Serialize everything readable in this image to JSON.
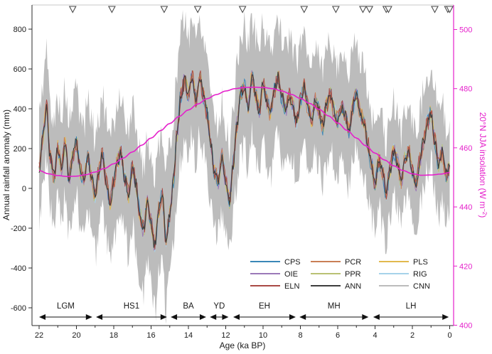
{
  "figure": {
    "background": "#ffffff"
  },
  "chart_data": {
    "type": "line",
    "title": "",
    "x_axis": {
      "label": "Age (ka BP)",
      "reversed": true,
      "major_ticks": [
        22,
        20,
        18,
        16,
        14,
        12,
        10,
        8,
        6,
        4,
        2,
        0
      ],
      "minor_ticks": [
        21,
        19,
        17,
        15,
        13,
        11,
        9,
        7,
        5,
        3,
        1
      ]
    },
    "y_left": {
      "label": "Annual rainfall anomaly (mm)",
      "ticks": [
        800,
        600,
        400,
        200,
        0,
        -200,
        -400,
        -600
      ],
      "range": [
        -690,
        920
      ]
    },
    "y_right": {
      "label_pre": "20°N JJA insolation (W m",
      "label_sup": "−2",
      "label_post": ")",
      "ticks": [
        500,
        480,
        460,
        440,
        420,
        400
      ],
      "range": [
        400,
        508.3
      ]
    },
    "colors": {
      "band": "#bcbcbc",
      "axis": "#2b2b2b",
      "text": "#1a1a1a",
      "frame_top": "#c9c9c9",
      "magenta": "#e520cb",
      "marker_stroke": "#4a4a4a",
      "marker_fill": "#ffffff"
    },
    "legend": [
      {
        "label": "CPS",
        "color": "#3a87b7"
      },
      {
        "label": "OIE",
        "color": "#9b79b8"
      },
      {
        "label": "ELN",
        "color": "#a94a45"
      },
      {
        "label": "PCR",
        "color": "#c97f55"
      },
      {
        "label": "PPR",
        "color": "#b9c173"
      },
      {
        "label": "ANN",
        "color": "#3d3d3d"
      },
      {
        "label": "PLS",
        "color": "#e2b94e"
      },
      {
        "label": "RIG",
        "color": "#a6d2ea"
      },
      {
        "label": "CNN",
        "color": "#bcbcbc"
      }
    ],
    "draw_order": [
      "RIG",
      "PLS",
      "PPR",
      "OIE",
      "CPS",
      "PCR",
      "ELN",
      "ANN"
    ],
    "reconstruction_mean_mm": {
      "age_start": 22.0,
      "age_step": -0.2,
      "values": [
        100,
        260,
        420,
        150,
        60,
        200,
        110,
        230,
        50,
        160,
        230,
        90,
        40,
        170,
        60,
        -40,
        80,
        170,
        40,
        -70,
        30,
        140,
        180,
        50,
        -30,
        110,
        20,
        -130,
        -210,
        -70,
        -170,
        -290,
        -110,
        -40,
        -260,
        -130,
        40,
        280,
        470,
        540,
        470,
        570,
        440,
        560,
        470,
        380,
        220,
        80,
        40,
        160,
        40,
        -60,
        120,
        320,
        470,
        510,
        410,
        560,
        470,
        390,
        530,
        440,
        370,
        490,
        560,
        460,
        390,
        470,
        410,
        340,
        440,
        510,
        410,
        340,
        440,
        390,
        310,
        420,
        470,
        390,
        340,
        410,
        370,
        290,
        410,
        470,
        390,
        330,
        230,
        120,
        30,
        140,
        80,
        -20,
        90,
        190,
        130,
        30,
        140,
        190,
        90,
        30,
        140,
        240,
        330,
        380,
        240,
        120,
        180,
        60,
        110
      ]
    },
    "uncertainty_band_halfwidth_mm": {
      "ages": [
        22,
        21,
        20,
        19,
        18,
        17,
        16,
        15,
        14,
        13,
        12,
        11,
        10,
        9,
        8,
        7,
        6,
        5,
        4,
        3,
        2,
        1,
        0
      ],
      "values": [
        270,
        260,
        270,
        290,
        300,
        300,
        330,
        340,
        300,
        300,
        260,
        300,
        310,
        300,
        290,
        280,
        280,
        280,
        250,
        240,
        240,
        250,
        230
      ]
    },
    "insolation_series": {
      "name": "20N JJA insolation",
      "ages": [
        22,
        21.5,
        21,
        20.5,
        20,
        19.5,
        19,
        18.5,
        18,
        17.5,
        17,
        16.5,
        16,
        15.5,
        15,
        14.5,
        14,
        13.5,
        13,
        12.5,
        12,
        11.5,
        11,
        10.5,
        10,
        9.5,
        9,
        8.5,
        8,
        7.5,
        7,
        6.5,
        6,
        5.5,
        5,
        4.5,
        4,
        3.5,
        3,
        2.5,
        2,
        1.5,
        1,
        0.5,
        0
      ],
      "values": [
        452.3,
        451.2,
        450.6,
        450.3,
        450.4,
        450.9,
        451.8,
        453.0,
        454.6,
        456.5,
        458.6,
        460.9,
        463.3,
        465.8,
        468.2,
        470.6,
        472.8,
        474.8,
        476.6,
        478.0,
        479.2,
        480.0,
        480.4,
        480.5,
        480.4,
        480.0,
        479.2,
        478.1,
        476.7,
        475.0,
        473.0,
        470.8,
        468.4,
        465.9,
        463.3,
        460.7,
        458.2,
        455.9,
        453.9,
        452.3,
        451.2,
        450.7,
        450.8,
        451.1,
        451.6
      ]
    },
    "top_markers": {
      "symbol": "open-triangle-down",
      "ages": [
        20.2,
        18.1,
        15.3,
        13.5,
        11.1,
        7.8,
        6.1,
        4.65,
        4.3,
        3.4,
        3.28,
        0.8,
        0.1,
        0.0
      ]
    },
    "periods": [
      {
        "label": "LGM",
        "from": 22.0,
        "to": 19.15
      },
      {
        "label": "HS1",
        "from": 18.95,
        "to": 15.15
      },
      {
        "label": "BA",
        "from": 14.95,
        "to": 13.05
      },
      {
        "label": "YD",
        "from": 12.85,
        "to": 11.85
      },
      {
        "label": "EH",
        "from": 11.6,
        "to": 8.25
      },
      {
        "label": "MH",
        "from": 8.05,
        "to": 4.35
      },
      {
        "label": "LH",
        "from": 4.1,
        "to": 0.05
      }
    ],
    "render_noise": {
      "subdivisions": 4,
      "series_jitter_mm": 45,
      "ann_jitter_mm": 30,
      "band_jitter_mm": 85,
      "seeds": {
        "CPS": 11,
        "OIE": 22,
        "ELN": 33,
        "PCR": 44,
        "PPR": 55,
        "ANN": 66,
        "PLS": 77,
        "RIG": 88,
        "band_upper": 5,
        "band_lower": 9
      }
    }
  }
}
